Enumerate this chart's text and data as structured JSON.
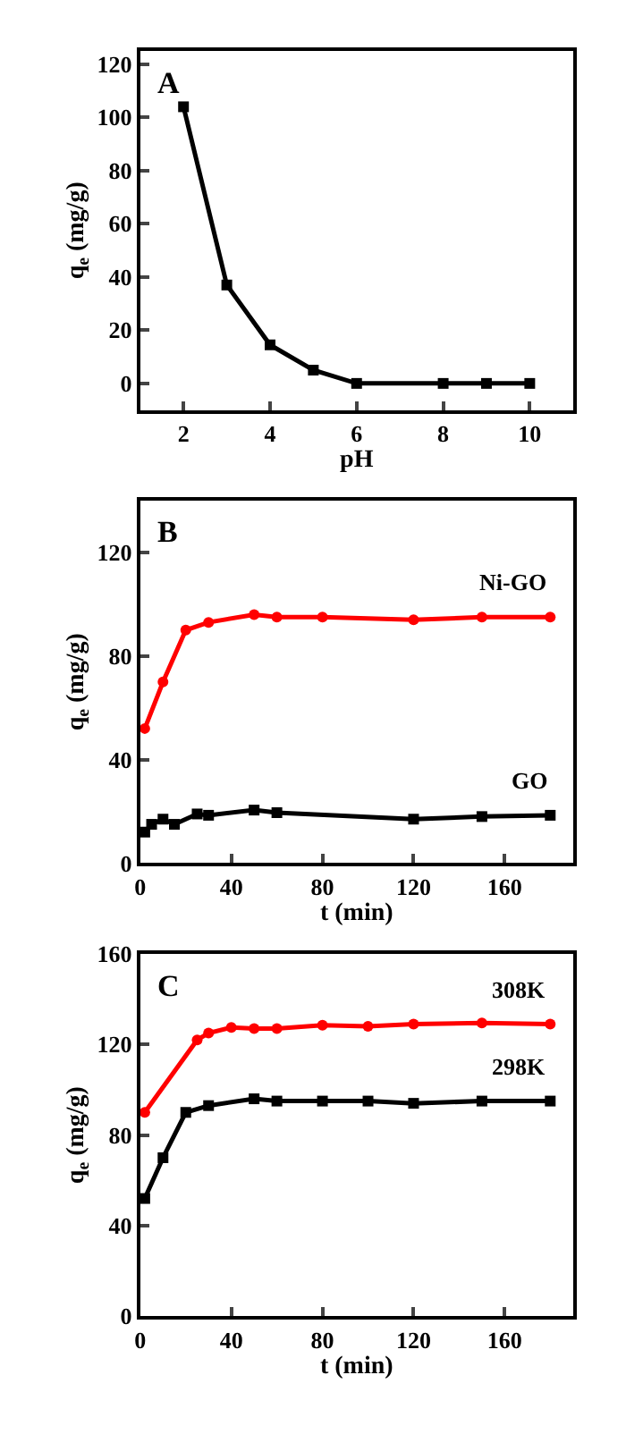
{
  "chart_data": [
    {
      "type": "line",
      "title": "A",
      "xlabel": "pH",
      "ylabel": "q$_{e}$ (mg/g)",
      "xlim": [
        1,
        11
      ],
      "xticks": [
        2,
        4,
        6,
        8,
        10
      ],
      "ylim": [
        -10,
        125
      ],
      "yticks": [
        0,
        20,
        40,
        60,
        80,
        100,
        120
      ],
      "legend": false,
      "x": [
        2,
        3,
        4,
        5,
        6,
        8,
        9,
        10
      ],
      "series": [
        {
          "color": "#000000",
          "marker": "square",
          "values": [
            104,
            37,
            14.5,
            5,
            0,
            0,
            0,
            0
          ]
        }
      ]
    },
    {
      "type": "line",
      "title": "B",
      "xlabel": "t (min)",
      "ylabel": "q$_{e}$ (mg/g)",
      "xlim": [
        0,
        190
      ],
      "xticks": [
        0,
        40,
        80,
        120,
        160
      ],
      "ylim": [
        0,
        140
      ],
      "yticks": [
        0,
        40,
        80,
        120
      ],
      "legend": false,
      "series": [
        {
          "name": "Ni-GO",
          "color": "#ff0000",
          "marker": "circle",
          "x": [
            2,
            10,
            20,
            30,
            50,
            60,
            80,
            120,
            150,
            180
          ],
          "values": [
            52,
            70,
            90,
            93,
            96,
            95,
            95,
            94,
            95,
            95
          ]
        },
        {
          "name": "GO",
          "color": "#000000",
          "marker": "square",
          "x": [
            2,
            5,
            10,
            15,
            25,
            30,
            50,
            60,
            120,
            150,
            180
          ],
          "values": [
            12,
            15,
            17,
            15,
            19,
            18.5,
            20.5,
            19.5,
            17,
            18,
            18.5
          ]
        }
      ]
    },
    {
      "type": "line",
      "title": "C",
      "xlabel": "t (min)",
      "ylabel": "q$_{e}$ (mg/g)",
      "xlim": [
        0,
        190
      ],
      "xticks": [
        0,
        40,
        80,
        120,
        160
      ],
      "ylim": [
        0,
        160
      ],
      "yticks": [
        0,
        40,
        80,
        120,
        160
      ],
      "legend": false,
      "series": [
        {
          "name": "308K",
          "color": "#ff0000",
          "marker": "circle",
          "x": [
            2,
            25,
            30,
            40,
            50,
            60,
            80,
            100,
            120,
            150,
            180
          ],
          "values": [
            90,
            122,
            125,
            127.5,
            127,
            127,
            128.5,
            128,
            129,
            129.5,
            129
          ]
        },
        {
          "name": "298K",
          "color": "#000000",
          "marker": "square",
          "x": [
            2,
            10,
            20,
            30,
            50,
            60,
            80,
            100,
            120,
            150,
            180
          ],
          "values": [
            52,
            70,
            90,
            93,
            96,
            95,
            95,
            95,
            94,
            95,
            95
          ]
        }
      ]
    }
  ]
}
